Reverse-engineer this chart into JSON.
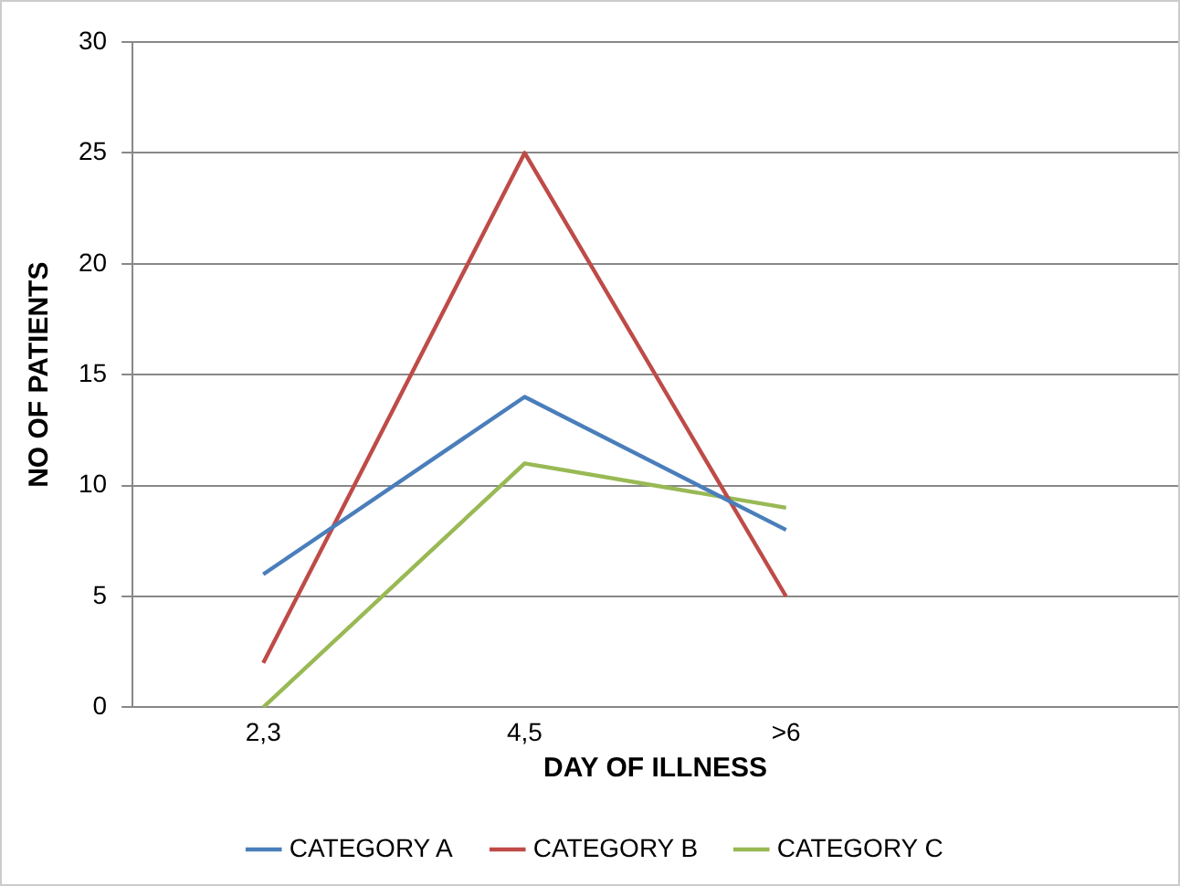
{
  "chart_data": {
    "type": "line",
    "xlabel": "DAY OF ILLNESS",
    "ylabel": "NO OF PATIENTS",
    "categories": [
      "2,3",
      "4,5",
      ">6",
      null
    ],
    "series": [
      {
        "name": "CATEGORY A",
        "color": "#4a7ebb",
        "values": [
          6,
          14,
          8,
          null
        ]
      },
      {
        "name": "CATEGORY B",
        "color": "#be4b48",
        "values": [
          2,
          25,
          5,
          null
        ]
      },
      {
        "name": "CATEGORY C",
        "color": "#98b954",
        "values": [
          0,
          11,
          9,
          null
        ]
      }
    ],
    "ylim": [
      0,
      30
    ],
    "yticks": [
      0,
      5,
      10,
      15,
      20,
      25,
      30
    ],
    "grid": "y",
    "legend": "bottom",
    "marker": "none"
  }
}
